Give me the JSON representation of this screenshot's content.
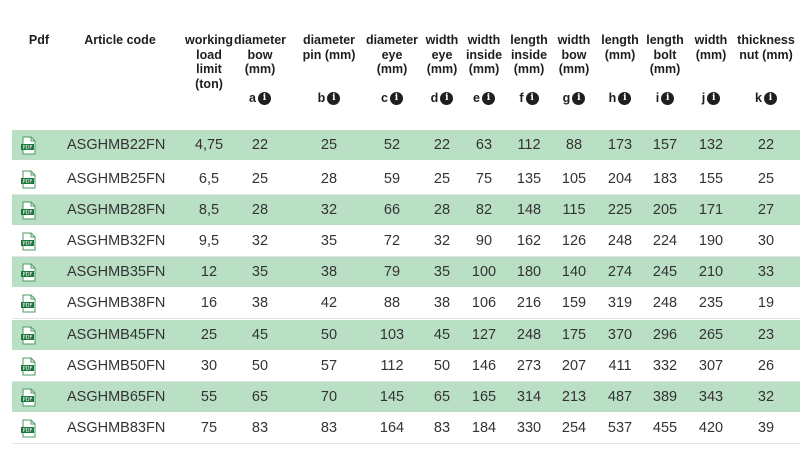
{
  "header": {
    "pdf": "Pdf",
    "article_code": "Article code",
    "columns": [
      {
        "label": "working\nload\nlimit\n(ton)",
        "sym": ""
      },
      {
        "label": "diameter\nbow\n(mm)",
        "sym": "a"
      },
      {
        "label": "diameter\npin (mm)",
        "sym": "b"
      },
      {
        "label": "diameter\neye\n(mm)",
        "sym": "c"
      },
      {
        "label": "width\neye\n(mm)",
        "sym": "d"
      },
      {
        "label": "width\ninside\n(mm)",
        "sym": "e"
      },
      {
        "label": "length\ninside\n(mm)",
        "sym": "f"
      },
      {
        "label": "width\nbow\n(mm)",
        "sym": "g"
      },
      {
        "label": "length\n(mm)",
        "sym": "h"
      },
      {
        "label": "length\nbolt\n(mm)",
        "sym": "i"
      },
      {
        "label": "width\n(mm)",
        "sym": "j"
      },
      {
        "label": "thickness\nnut (mm)",
        "sym": "k"
      }
    ],
    "info_icon_glyph": "i"
  },
  "pdf_icon_text": "PDF",
  "rows": [
    {
      "code": "ASGHMB22FN",
      "values": [
        "4,75",
        "22",
        "25",
        "52",
        "22",
        "63",
        "112",
        "88",
        "173",
        "157",
        "132",
        "22"
      ]
    },
    {
      "code": "ASGHMB25FN",
      "values": [
        "6,5",
        "25",
        "28",
        "59",
        "25",
        "75",
        "135",
        "105",
        "204",
        "183",
        "155",
        "25"
      ]
    },
    {
      "code": "ASGHMB28FN",
      "values": [
        "8,5",
        "28",
        "32",
        "66",
        "28",
        "82",
        "148",
        "115",
        "225",
        "205",
        "171",
        "27"
      ]
    },
    {
      "code": "ASGHMB32FN",
      "values": [
        "9,5",
        "32",
        "35",
        "72",
        "32",
        "90",
        "162",
        "126",
        "248",
        "224",
        "190",
        "30"
      ]
    },
    {
      "code": "ASGHMB35FN",
      "values": [
        "12",
        "35",
        "38",
        "79",
        "35",
        "100",
        "180",
        "140",
        "274",
        "245",
        "210",
        "33"
      ]
    },
    {
      "code": "ASGHMB38FN",
      "values": [
        "16",
        "38",
        "42",
        "88",
        "38",
        "106",
        "216",
        "159",
        "319",
        "248",
        "235",
        "19"
      ]
    },
    {
      "code": "ASGHMB45FN",
      "values": [
        "25",
        "45",
        "50",
        "103",
        "45",
        "127",
        "248",
        "175",
        "370",
        "296",
        "265",
        "23"
      ]
    },
    {
      "code": "ASGHMB50FN",
      "values": [
        "30",
        "50",
        "57",
        "112",
        "50",
        "146",
        "273",
        "207",
        "411",
        "332",
        "307",
        "26"
      ]
    },
    {
      "code": "ASGHMB65FN",
      "values": [
        "55",
        "65",
        "70",
        "145",
        "65",
        "165",
        "314",
        "213",
        "487",
        "389",
        "343",
        "32"
      ]
    },
    {
      "code": "ASGHMB83FN",
      "values": [
        "75",
        "83",
        "83",
        "164",
        "83",
        "184",
        "330",
        "254",
        "537",
        "455",
        "420",
        "39"
      ]
    }
  ],
  "colors": {
    "row_alt": "#b9dfc5",
    "pdf_red": "#1a7a3c",
    "info_bg": "#1f1f1f"
  }
}
